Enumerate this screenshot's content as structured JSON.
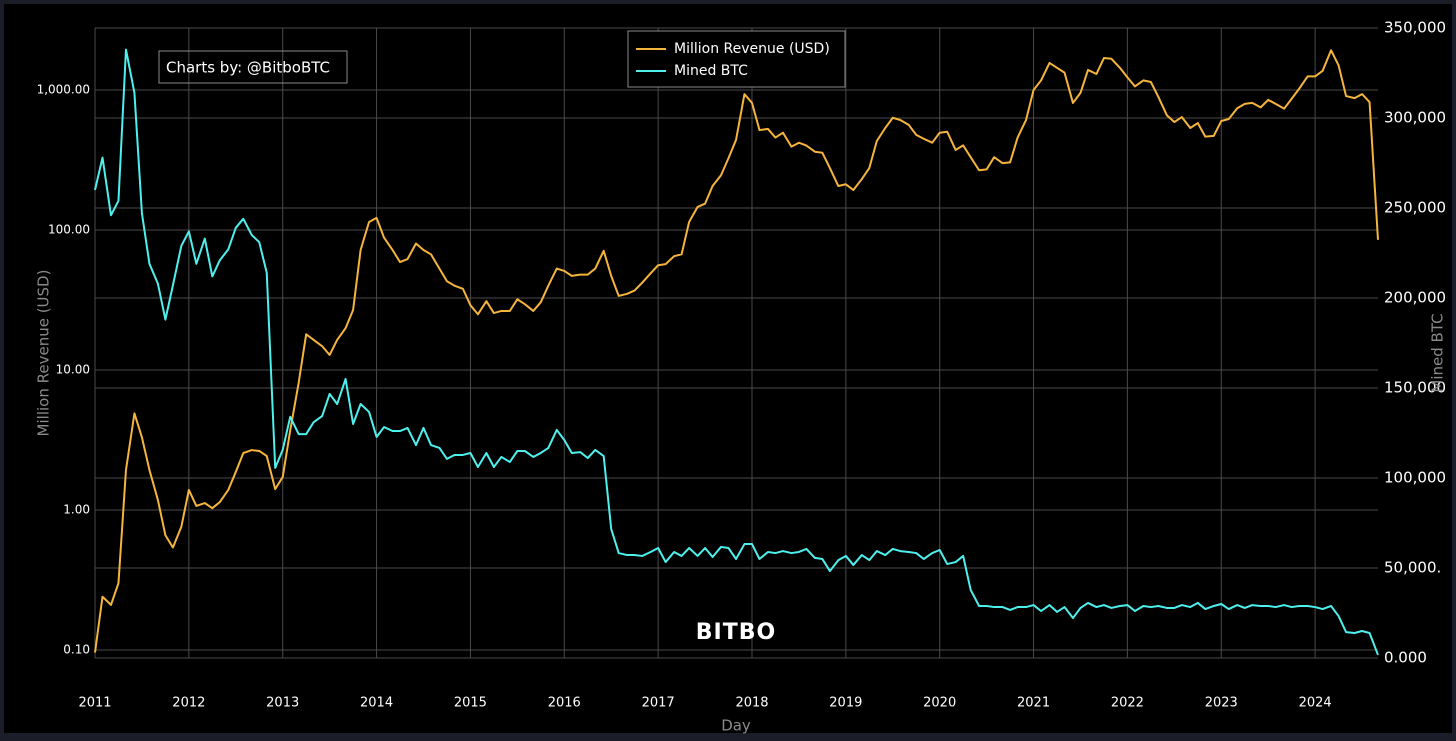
{
  "chart_data": {
    "type": "line",
    "annotation": "Charts by: @BitboBTC",
    "watermark": "BITBO",
    "x_label": "Day",
    "y_label": "Million Revenue (USD)",
    "y2_label": "Mined BTC",
    "yscale": "log",
    "grid": true,
    "xlim": [
      2011,
      2024.67
    ],
    "xticks": [
      2011,
      2012,
      2013,
      2014,
      2015,
      2016,
      2017,
      2018,
      2019,
      2020,
      2021,
      2022,
      2023,
      2024
    ],
    "ylim": [
      0.0877,
      2770
    ],
    "yticks": [
      {
        "value": 0.1,
        "label": "0.10"
      },
      {
        "value": 1,
        "label": "1.00"
      },
      {
        "value": 10,
        "label": "10.00"
      },
      {
        "value": 100,
        "label": "100.00"
      },
      {
        "value": 1000,
        "label": "1,000.00"
      }
    ],
    "y2lim": [
      0,
      350000
    ],
    "y2ticks": [
      {
        "value": 0,
        "label": "0.000"
      },
      {
        "value": 50000,
        "label": "50,000."
      },
      {
        "value": 100000,
        "label": "100,000"
      },
      {
        "value": 150000,
        "label": "150,000"
      },
      {
        "value": 200000,
        "label": "200,000"
      },
      {
        "value": 250000,
        "label": "250,000"
      },
      {
        "value": 300000,
        "label": "300,000"
      },
      {
        "value": 350000,
        "label": "350,000"
      }
    ],
    "x": [
      2011,
      2011.08,
      2011.17,
      2011.25,
      2011.33,
      2011.42,
      2011.5,
      2011.58,
      2011.67,
      2011.75,
      2011.83,
      2011.92,
      2012,
      2012.08,
      2012.17,
      2012.25,
      2012.33,
      2012.42,
      2012.5,
      2012.58,
      2012.67,
      2012.75,
      2012.83,
      2012.92,
      2013,
      2013.08,
      2013.17,
      2013.25,
      2013.33,
      2013.42,
      2013.5,
      2013.58,
      2013.67,
      2013.75,
      2013.83,
      2013.92,
      2014,
      2014.08,
      2014.17,
      2014.25,
      2014.33,
      2014.42,
      2014.5,
      2014.58,
      2014.67,
      2014.75,
      2014.83,
      2014.92,
      2015,
      2015.08,
      2015.17,
      2015.25,
      2015.33,
      2015.42,
      2015.5,
      2015.58,
      2015.67,
      2015.75,
      2015.83,
      2015.92,
      2016,
      2016.08,
      2016.17,
      2016.25,
      2016.33,
      2016.42,
      2016.5,
      2016.58,
      2016.67,
      2016.75,
      2016.83,
      2016.92,
      2017,
      2017.08,
      2017.17,
      2017.25,
      2017.33,
      2017.42,
      2017.5,
      2017.58,
      2017.67,
      2017.75,
      2017.83,
      2017.92,
      2018,
      2018.08,
      2018.17,
      2018.25,
      2018.33,
      2018.42,
      2018.5,
      2018.58,
      2018.67,
      2018.75,
      2018.83,
      2018.92,
      2019,
      2019.08,
      2019.17,
      2019.25,
      2019.33,
      2019.42,
      2019.5,
      2019.58,
      2019.67,
      2019.75,
      2019.83,
      2019.92,
      2020,
      2020.08,
      2020.17,
      2020.25,
      2020.33,
      2020.42,
      2020.5,
      2020.58,
      2020.67,
      2020.75,
      2020.83,
      2020.92,
      2021,
      2021.08,
      2021.17,
      2021.25,
      2021.33,
      2021.42,
      2021.5,
      2021.58,
      2021.67,
      2021.75,
      2021.83,
      2021.92,
      2022,
      2022.08,
      2022.17,
      2022.25,
      2022.33,
      2022.42,
      2022.5,
      2022.58,
      2022.67,
      2022.75,
      2022.83,
      2022.92,
      2023,
      2023.08,
      2023.17,
      2023.25,
      2023.33,
      2023.42,
      2023.5,
      2023.58,
      2023.67,
      2023.75,
      2023.83,
      2023.92,
      2024,
      2024.08,
      2024.17,
      2024.25,
      2024.33,
      2024.42,
      2024.5,
      2024.58,
      2024.67
    ],
    "series": [
      {
        "name": "Million Revenue (USD)",
        "color": "#f5b43c",
        "axis": "y",
        "values": [
          0.096,
          0.24,
          0.21,
          0.3,
          1.93,
          4.9,
          3.3,
          1.93,
          1.18,
          0.66,
          0.54,
          0.76,
          1.39,
          1.07,
          1.12,
          1.03,
          1.14,
          1.39,
          1.87,
          2.55,
          2.68,
          2.64,
          2.43,
          1.41,
          1.72,
          3.7,
          8.1,
          18,
          16.4,
          14.8,
          12.8,
          16.4,
          19.9,
          26.8,
          72,
          114,
          122,
          88,
          72,
          59,
          62,
          80,
          72,
          67,
          53,
          43,
          40,
          38,
          29,
          25,
          31,
          25.5,
          26.4,
          26.4,
          32,
          29.5,
          26.4,
          30.5,
          40,
          53,
          51,
          47,
          48,
          48,
          53,
          71,
          47,
          33.8,
          35,
          37,
          42,
          49,
          56,
          57,
          65,
          67,
          114,
          146,
          154,
          206,
          246,
          326,
          440,
          934,
          808,
          517,
          527,
          457,
          495,
          394,
          420,
          401,
          362,
          356,
          277,
          206,
          212,
          193,
          231,
          277,
          432,
          535,
          633,
          610,
          563,
          478,
          448,
          420,
          495,
          503,
          373,
          402,
          331,
          267,
          271,
          331,
          300,
          304,
          457,
          610,
          1000,
          1170,
          1560,
          1440,
          1330,
          808,
          953,
          1390,
          1300,
          1690,
          1670,
          1440,
          1230,
          1060,
          1170,
          1140,
          891,
          660,
          590,
          640,
          535,
          580,
          464,
          470,
          600,
          620,
          740,
          795,
          808,
          751,
          850,
          795,
          735,
          865,
          1020,
          1250,
          1250,
          1370,
          1920,
          1500,
          904,
          874,
          934,
          820,
          85
        ]
      },
      {
        "name": "Mined BTC",
        "color": "#4ef0ee",
        "axis": "y2",
        "values": [
          260000,
          278000,
          246000,
          254000,
          338000,
          314000,
          247000,
          219000,
          208000,
          188000,
          207000,
          229000,
          237000,
          219000,
          233000,
          212000,
          221000,
          227000,
          239000,
          244000,
          235000,
          231000,
          214000,
          105600,
          115600,
          134000,
          124400,
          124400,
          131000,
          134400,
          146700,
          141100,
          155000,
          130000,
          141100,
          136700,
          122800,
          128300,
          126100,
          126100,
          127800,
          118300,
          127800,
          118300,
          116700,
          110600,
          112800,
          112800,
          113900,
          106100,
          113900,
          106100,
          111700,
          108900,
          115000,
          115000,
          111700,
          113900,
          116700,
          126700,
          121100,
          113900,
          114400,
          111100,
          115600,
          112200,
          71700,
          58300,
          57200,
          57200,
          56700,
          58900,
          61100,
          53300,
          58900,
          56700,
          61100,
          56700,
          61100,
          56100,
          61700,
          61100,
          55000,
          63300,
          63300,
          55000,
          58900,
          58300,
          59400,
          58300,
          58900,
          60600,
          55600,
          55000,
          48300,
          54400,
          56700,
          51700,
          57200,
          54400,
          59400,
          57200,
          60600,
          59400,
          58900,
          58300,
          55000,
          58300,
          60000,
          52200,
          53300,
          56700,
          37800,
          28900,
          28900,
          28300,
          28300,
          26700,
          28300,
          28300,
          29400,
          26100,
          29400,
          25600,
          28300,
          22200,
          27800,
          30600,
          28300,
          29400,
          27800,
          28900,
          29400,
          26100,
          28900,
          28300,
          28900,
          27800,
          27800,
          29400,
          28300,
          30600,
          27200,
          28900,
          30000,
          27200,
          29400,
          27800,
          29400,
          28900,
          28900,
          28300,
          29400,
          28300,
          28900,
          28900,
          28300,
          27200,
          28900,
          23300,
          14400,
          13900,
          15000,
          13900,
          1700
        ]
      }
    ]
  }
}
